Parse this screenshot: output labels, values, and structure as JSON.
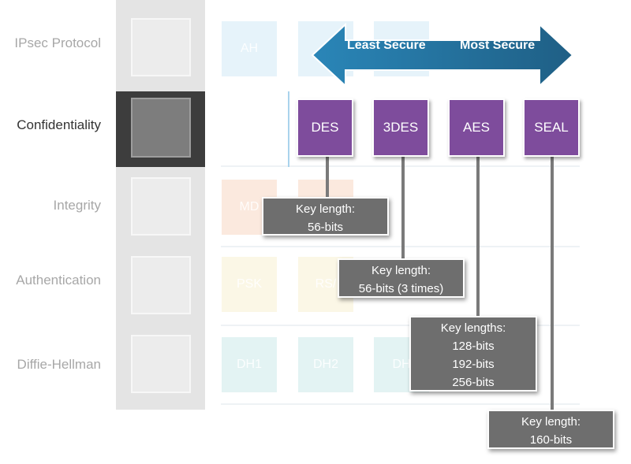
{
  "rows": {
    "ipsec_protocol": "IPsec Protocol",
    "confidentiality": "Confidentiality",
    "integrity": "Integrity",
    "authentication": "Authentication",
    "diffie_hellman": "Diffie-Hellman"
  },
  "faded_cells": {
    "ah": "AH",
    "md": "MD",
    "psk": "PSK",
    "rs": "RS/",
    "dh1": "DH1",
    "dh2": "DH2",
    "dh3": "DH"
  },
  "arrow": {
    "left_label": "Least Secure",
    "right_label": "Most Secure"
  },
  "algorithms": {
    "des": "DES",
    "tdes": "3DES",
    "aes": "AES",
    "seal": "SEAL"
  },
  "key_info": {
    "des": {
      "title": "Key length:",
      "lines": [
        "56-bits"
      ]
    },
    "tdes": {
      "title": "Key length:",
      "lines": [
        "56-bits (3 times)"
      ]
    },
    "aes": {
      "title": "Key lengths:",
      "lines": [
        "128-bits",
        "192-bits",
        "256-bits"
      ]
    },
    "seal": {
      "title": "Key length:",
      "lines": [
        "160-bits"
      ]
    }
  },
  "colors": {
    "algorithm_fill": "#7e4c9c",
    "arrow_fill": "#2277a8",
    "info_fill": "#6e6e6e",
    "active_row": "#3d3d3d"
  }
}
